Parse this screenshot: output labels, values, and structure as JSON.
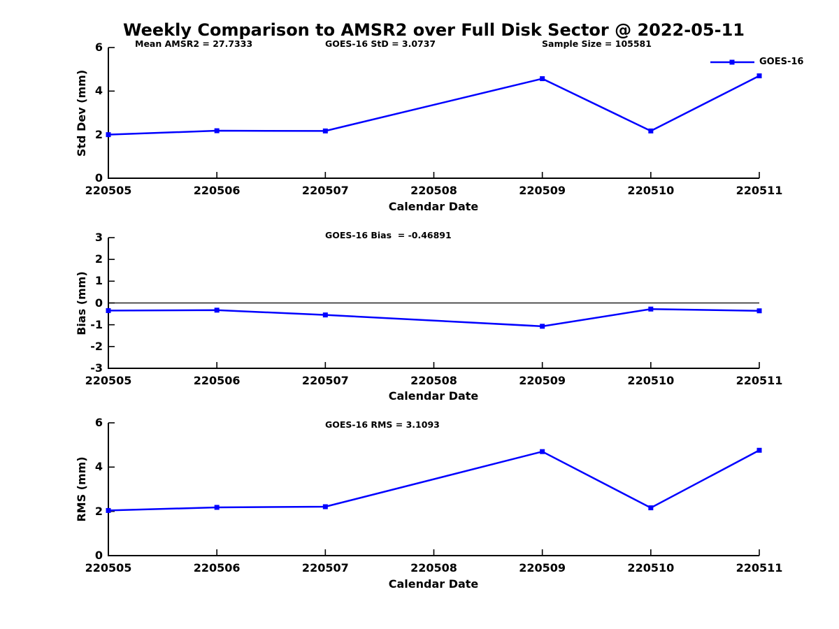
{
  "figure": {
    "title": "Weekly Comparison to AMSR2 over Full Disk Sector @ 2022-05-11",
    "background_color": "#ffffff",
    "text_color": "#000000",
    "axis_color": "#000000"
  },
  "legend": {
    "label": "GOES-16",
    "line_color": "#0000ff",
    "marker": "filled-square",
    "position": "top-right-of-first-subplot"
  },
  "chart_data": [
    {
      "type": "line",
      "ylabel": "Std Dev (mm)",
      "xlabel": "Calendar Date",
      "annotations": [
        "Mean AMSR2 = 27.7333",
        "GOES-16 StD = 3.0737",
        "Sample Size = 105581"
      ],
      "series": [
        {
          "name": "GOES-16",
          "color": "#0000ff",
          "marker": "square",
          "x": [
            220505,
            220506,
            220507,
            220509,
            220510,
            220511
          ],
          "y": [
            2.0,
            2.18,
            2.17,
            4.57,
            2.17,
            4.7
          ]
        }
      ],
      "xticks": [
        220505,
        220506,
        220507,
        220508,
        220509,
        220510,
        220511
      ],
      "yticks": [
        0,
        2,
        4,
        6
      ],
      "xlim": [
        220505,
        220511
      ],
      "ylim": [
        0,
        6
      ],
      "zero_line": false,
      "grid": false
    },
    {
      "type": "line",
      "ylabel": "Bias (mm)",
      "xlabel": "Calendar Date",
      "annotations": [
        "GOES-16 Bias  = -0.46891"
      ],
      "series": [
        {
          "name": "GOES-16",
          "color": "#0000ff",
          "marker": "square",
          "x": [
            220505,
            220506,
            220507,
            220509,
            220510,
            220511
          ],
          "y": [
            -0.35,
            -0.33,
            -0.55,
            -1.07,
            -0.28,
            -0.36
          ]
        }
      ],
      "xticks": [
        220505,
        220506,
        220507,
        220508,
        220509,
        220510,
        220511
      ],
      "yticks": [
        3,
        2,
        1,
        0,
        -1,
        -2,
        -3
      ],
      "xlim": [
        220505,
        220511
      ],
      "ylim": [
        -3,
        3
      ],
      "zero_line": true,
      "grid": false
    },
    {
      "type": "line",
      "ylabel": "RMS (mm)",
      "xlabel": "Calendar Date",
      "annotations": [
        "GOES-16 RMS = 3.1093"
      ],
      "series": [
        {
          "name": "GOES-16",
          "color": "#0000ff",
          "marker": "square",
          "x": [
            220505,
            220506,
            220507,
            220509,
            220510,
            220511
          ],
          "y": [
            2.04,
            2.18,
            2.21,
            4.7,
            2.16,
            4.76
          ]
        }
      ],
      "xticks": [
        220505,
        220506,
        220507,
        220508,
        220509,
        220510,
        220511
      ],
      "yticks": [
        0,
        2,
        4,
        6
      ],
      "xlim": [
        220505,
        220511
      ],
      "ylim": [
        0,
        6
      ],
      "zero_line": false,
      "grid": false
    }
  ]
}
